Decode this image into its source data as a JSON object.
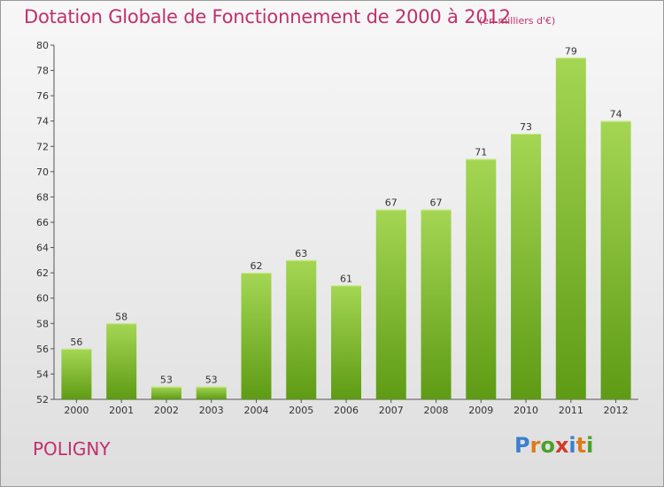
{
  "title": "Dotation Globale de Fonctionnement de 2000 à 2012",
  "subtitle": "(en milliers d'€)",
  "commune": "POLIGNY",
  "logo": {
    "letters": [
      "P",
      "r",
      "o",
      "x",
      "i",
      "t",
      "i"
    ],
    "colors": [
      "#3b7fd0",
      "#e0791b",
      "#4aa02c",
      "#d23a2a",
      "#3b7fd0",
      "#e0791b",
      "#4aa02c"
    ]
  },
  "colors": {
    "bar_top": "#a4d654",
    "bar_bottom": "#5e9b14",
    "accent": "#c0306b"
  },
  "chart_data": {
    "type": "bar",
    "title": "Dotation Globale de Fonctionnement de 2000 à 2012",
    "categories": [
      "2000",
      "2001",
      "2002",
      "2003",
      "2004",
      "2005",
      "2006",
      "2007",
      "2008",
      "2009",
      "2010",
      "2011",
      "2012"
    ],
    "values": [
      56,
      58,
      53,
      53,
      62,
      63,
      61,
      67,
      67,
      71,
      73,
      79,
      74
    ],
    "ylim": [
      52,
      80
    ],
    "yticks": [
      52,
      54,
      56,
      58,
      60,
      62,
      64,
      66,
      68,
      70,
      72,
      74,
      76,
      78,
      80
    ],
    "grid": false,
    "legend": "none"
  }
}
